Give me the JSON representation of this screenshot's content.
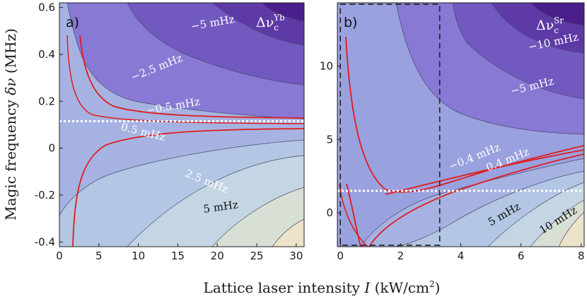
{
  "chart_data": {
    "type": "contour",
    "xlabel_text": "Lattice laser intensity ",
    "xlabel_var": "I",
    "xlabel_unit": " (kW/cm",
    "xlabel_exp": "2",
    "xlabel_close": ")",
    "ylabel_text": "Magic frequency ",
    "ylabel_var": "δν",
    "ylabel_unit": " (MHz)",
    "panels": [
      {
        "label": "a)",
        "tag_symbol": "Δν",
        "tag_sub": "c",
        "tag_sup": "Yb",
        "xlim": [
          0,
          31
        ],
        "ylim": [
          -0.42,
          0.62
        ],
        "xticks": [
          "0",
          "5",
          "10",
          "15",
          "20",
          "25",
          "30"
        ],
        "xtick_values": [
          0,
          5,
          10,
          15,
          20,
          25,
          30
        ],
        "yticks": [
          "-0.4",
          "-0.2",
          "0",
          "0.2",
          "0.4",
          "0.6"
        ],
        "ytick_values": [
          -0.4,
          -0.2,
          0,
          0.2,
          0.4,
          0.6
        ],
        "magic_line_y": 0.115,
        "contour_labels": [
          {
            "text": "−5 mHz",
            "x": 19.5,
            "y": 0.52,
            "color": "#ffffff",
            "rot": -10
          },
          {
            "text": "−2.5 mHz",
            "x": 12.5,
            "y": 0.33,
            "color": "#ffffff",
            "rot": -22
          },
          {
            "text": "−0.5 mHz",
            "x": 14.5,
            "y": 0.165,
            "color": "#ffffff",
            "rot": -10
          },
          {
            "text": "0.5 mHz",
            "x": 10.5,
            "y": 0.055,
            "color": "#ffffff",
            "rot": 14
          },
          {
            "text": "2.5 mHz",
            "x": 18.5,
            "y": -0.155,
            "color": "#ffffff",
            "rot": 22
          },
          {
            "text": "5 mHz",
            "x": 20.5,
            "y": -0.265,
            "color": "#111111",
            "rot": -8
          }
        ]
      },
      {
        "label": "b)",
        "tag_symbol": "Δν",
        "tag_sub": "c",
        "tag_sup": "Sr",
        "xlim": [
          -0.1,
          8.1
        ],
        "ylim": [
          -2.3,
          14.3
        ],
        "xticks": [
          "0",
          "2",
          "4",
          "6",
          "8"
        ],
        "xtick_values": [
          0,
          2,
          4,
          6,
          8
        ],
        "yticks": [
          "0",
          "5",
          "10"
        ],
        "ytick_values": [
          0,
          5,
          10
        ],
        "magic_line_y": 1.5,
        "dashed_box": {
          "x0": 0.0,
          "x1": 3.3,
          "y0": -2.2,
          "y1": 14.2
        },
        "contour_labels": [
          {
            "text": "−10 mHz",
            "x": 7.1,
            "y": 11.4,
            "color": "#ffffff",
            "rot": -12
          },
          {
            "text": "−5 mHz",
            "x": 6.4,
            "y": 8.4,
            "color": "#ffffff",
            "rot": -14
          },
          {
            "text": "−0.4 mHz",
            "x": 4.5,
            "y": 3.6,
            "color": "#ffffff",
            "rot": -22
          },
          {
            "text": "0.4 mHz",
            "x": 5.6,
            "y": 3.4,
            "color": "#ffffff",
            "rot": -22
          },
          {
            "text": "5 mHz",
            "x": 5.5,
            "y": -0.3,
            "color": "#111111",
            "rot": -30
          },
          {
            "text": "10 mHz",
            "x": 7.3,
            "y": -0.7,
            "color": "#111111",
            "rot": -32
          }
        ]
      }
    ]
  },
  "colors": {
    "red_curve": "#e01b1b",
    "magic_line": "#ffffff",
    "contour_edge": "#4a4a6a",
    "bands": [
      "#4a1f8c",
      "#5e3aa6",
      "#7159c0",
      "#8779d4",
      "#9aa1df",
      "#a6b3e2",
      "#b3c6e4",
      "#c4d6e4",
      "#d8dfd4",
      "#ece3c8"
    ]
  }
}
